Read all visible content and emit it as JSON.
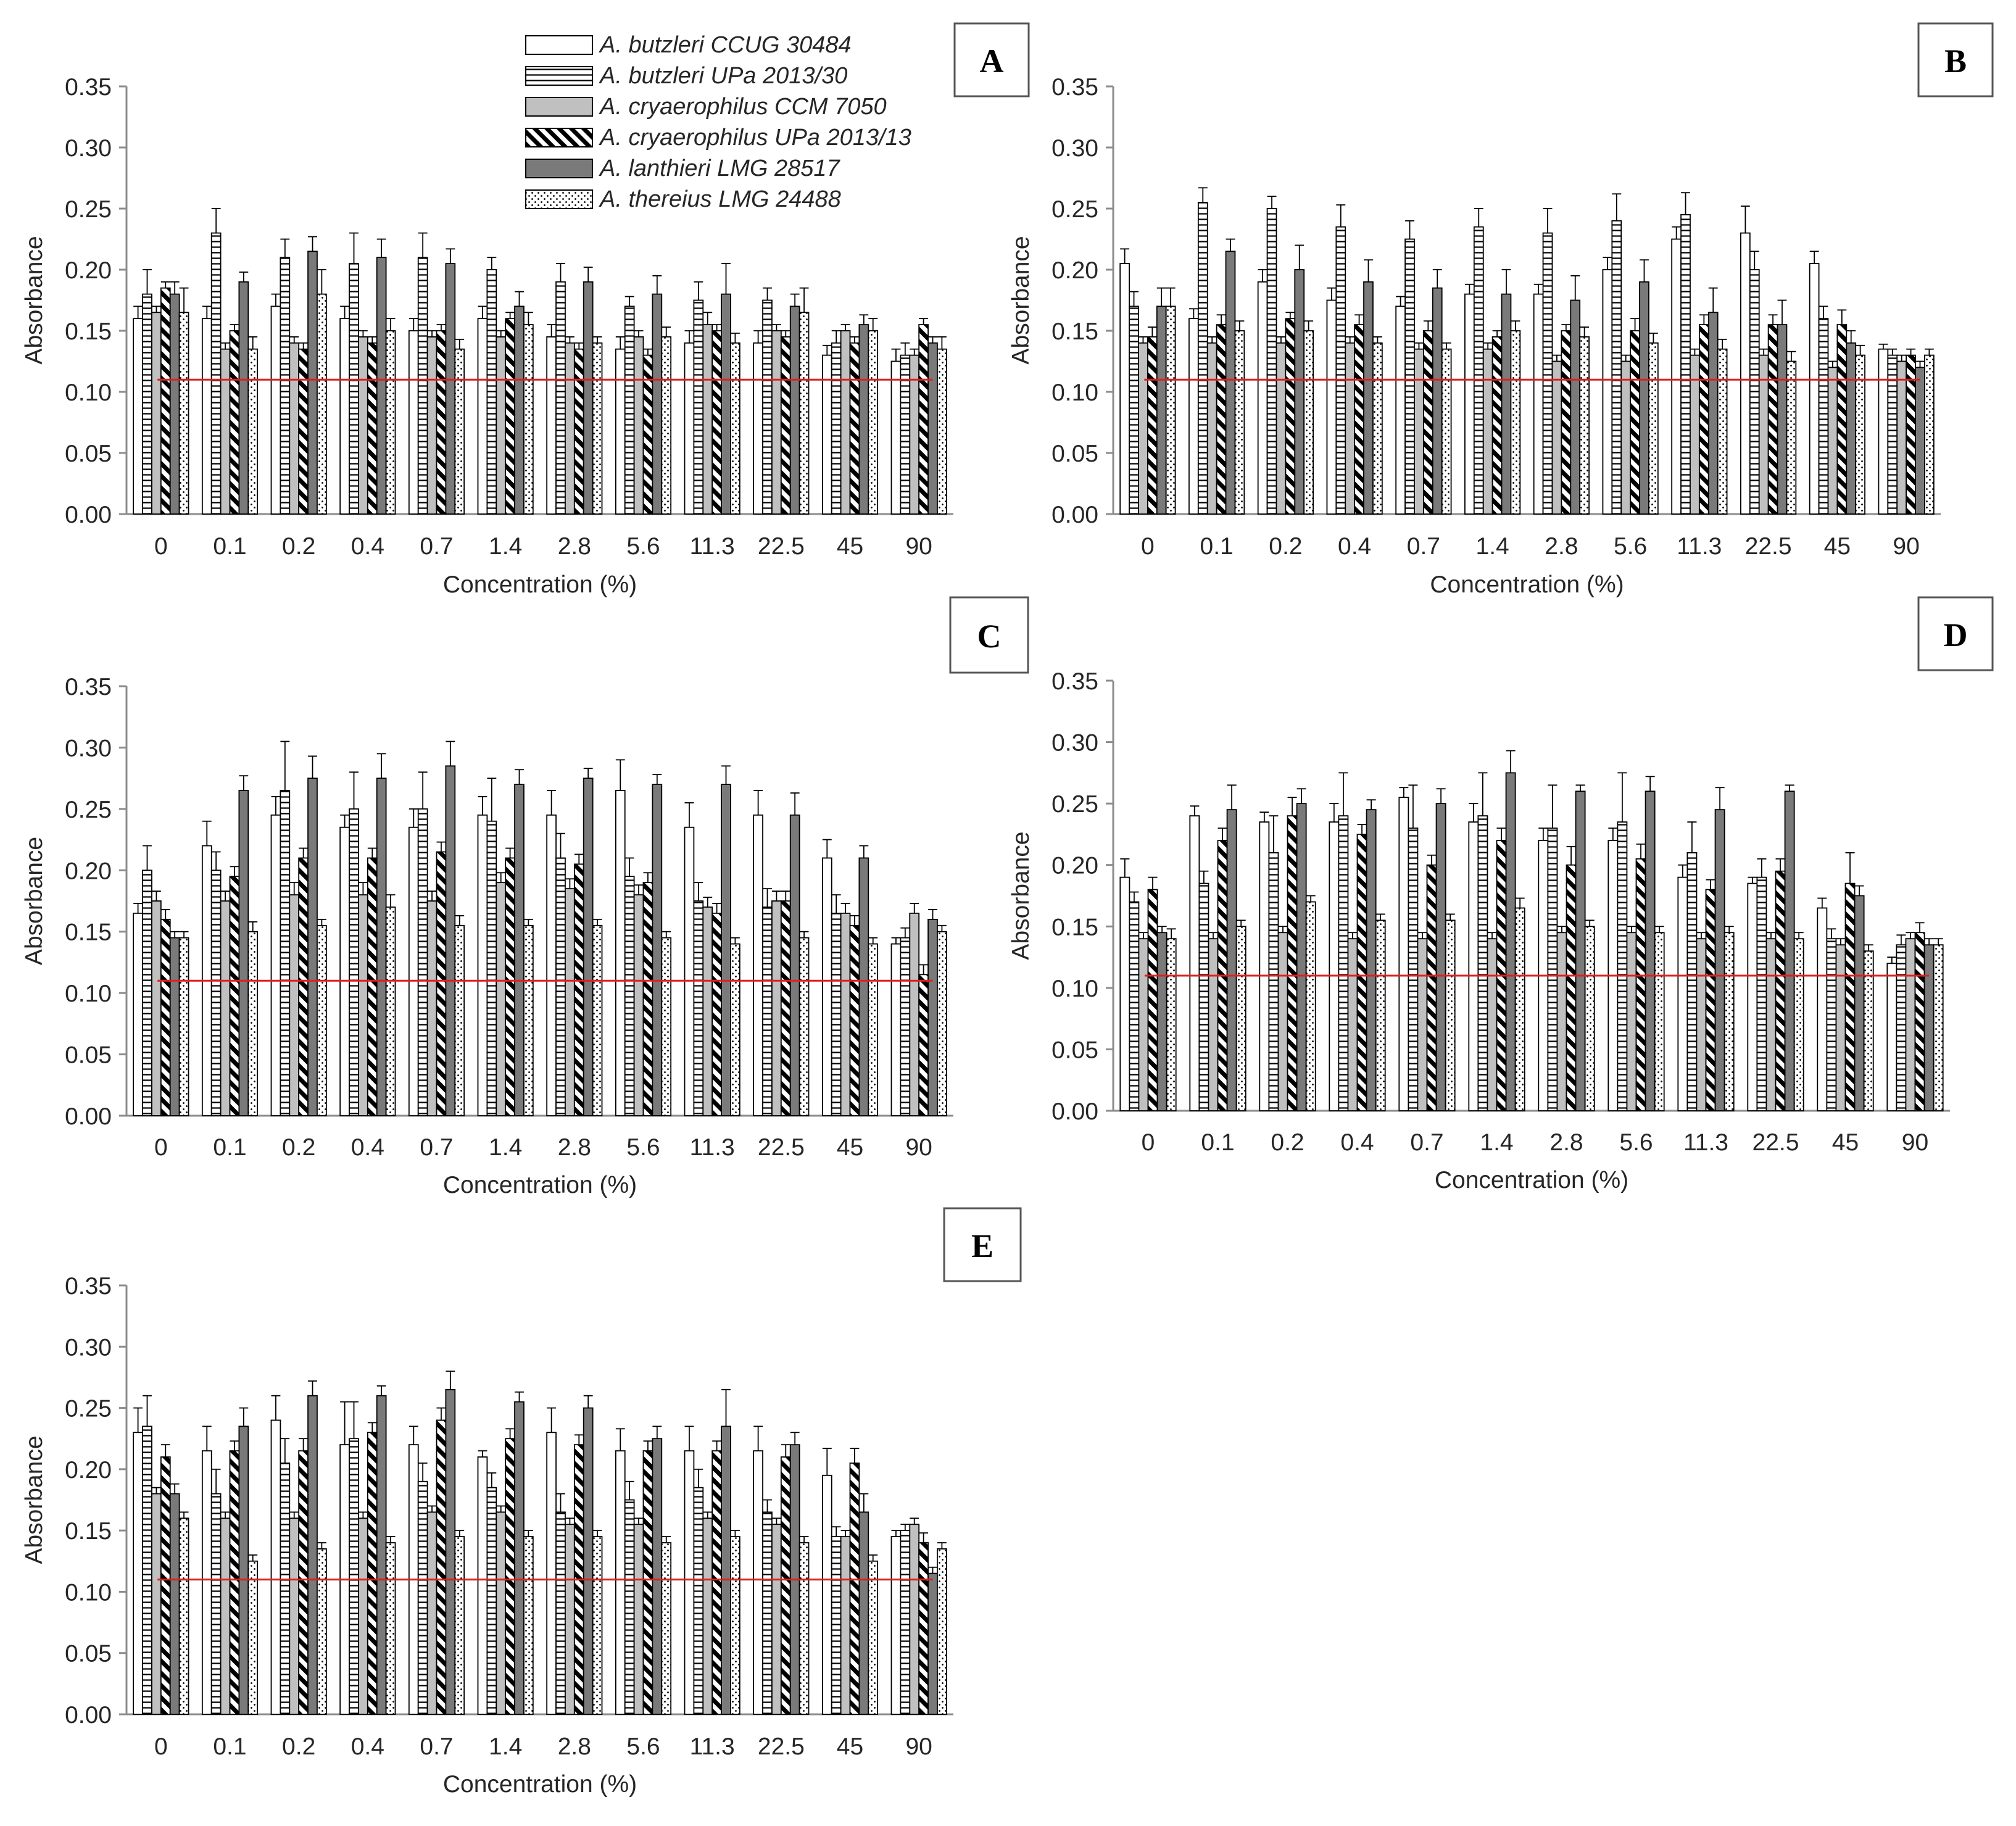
{
  "chart_data": {
    "type": "bar",
    "note": "Grouped bar charts with error bars; red horizontal line marks negative control absorbance.",
    "categories": [
      "0",
      "0.1",
      "0.2",
      "0.4",
      "0.7",
      "1.4",
      "2.8",
      "5.6",
      "11.3",
      "22.5",
      "45",
      "90"
    ],
    "xlabel": "Concentration (%)",
    "ylabel": "Absorbance",
    "ylim": [
      0,
      0.35
    ],
    "yticks": [
      "0.00",
      "0.05",
      "0.10",
      "0.15",
      "0.20",
      "0.25",
      "0.30",
      "0.35"
    ],
    "threshold": 0.11,
    "threshold_color": "#e02020",
    "legend": [
      {
        "name": "A. butzleri CCUG 30484",
        "pattern": "white"
      },
      {
        "name": "A. butzleri UPa 2013/30",
        "pattern": "hlines"
      },
      {
        "name": "A. cryaerophilus CCM 7050",
        "pattern": "lightgray"
      },
      {
        "name": "A. cryaerophilus UPa 2013/13",
        "pattern": "diag"
      },
      {
        "name": "A. lanthieri LMG 28517",
        "pattern": "darkgray"
      },
      {
        "name": "A. thereius LMG 24488",
        "pattern": "dots"
      }
    ],
    "panels": [
      {
        "label": "A",
        "series": [
          {
            "values": [
              0.16,
              0.16,
              0.17,
              0.16,
              0.15,
              0.16,
              0.145,
              0.135,
              0.14,
              0.14,
              0.13,
              0.125
            ],
            "errors": [
              0.01,
              0.01,
              0.01,
              0.01,
              0.01,
              0.01,
              0.01,
              0.01,
              0.01,
              0.01,
              0.008,
              0.01
            ]
          },
          {
            "values": [
              0.18,
              0.23,
              0.21,
              0.205,
              0.21,
              0.2,
              0.19,
              0.17,
              0.175,
              0.175,
              0.14,
              0.13
            ],
            "errors": [
              0.02,
              0.02,
              0.015,
              0.025,
              0.02,
              0.01,
              0.015,
              0.008,
              0.015,
              0.01,
              0.01,
              0.01
            ]
          },
          {
            "values": [
              0.165,
              0.135,
              0.14,
              0.145,
              0.145,
              0.145,
              0.14,
              0.145,
              0.155,
              0.15,
              0.15,
              0.13
            ],
            "errors": [
              0.005,
              0.005,
              0.005,
              0.005,
              0.005,
              0.005,
              0.005,
              0.005,
              0.01,
              0.005,
              0.005,
              0.005
            ]
          },
          {
            "values": [
              0.185,
              0.15,
              0.135,
              0.14,
              0.15,
              0.16,
              0.135,
              0.13,
              0.15,
              0.145,
              0.14,
              0.155
            ],
            "errors": [
              0.005,
              0.005,
              0.005,
              0.005,
              0.005,
              0.005,
              0.005,
              0.005,
              0.005,
              0.005,
              0.005,
              0.005
            ]
          },
          {
            "values": [
              0.18,
              0.19,
              0.215,
              0.21,
              0.205,
              0.17,
              0.19,
              0.18,
              0.18,
              0.17,
              0.155,
              0.14
            ],
            "errors": [
              0.01,
              0.008,
              0.012,
              0.015,
              0.012,
              0.012,
              0.012,
              0.015,
              0.025,
              0.01,
              0.008,
              0.005
            ]
          },
          {
            "values": [
              0.165,
              0.135,
              0.18,
              0.15,
              0.135,
              0.155,
              0.14,
              0.145,
              0.14,
              0.165,
              0.15,
              0.135
            ],
            "errors": [
              0.02,
              0.01,
              0.02,
              0.01,
              0.008,
              0.01,
              0.005,
              0.008,
              0.008,
              0.02,
              0.01,
              0.01
            ]
          }
        ]
      },
      {
        "label": "B",
        "series": [
          {
            "values": [
              0.205,
              0.16,
              0.19,
              0.175,
              0.17,
              0.18,
              0.18,
              0.2,
              0.225,
              0.23,
              0.205,
              0.135
            ],
            "errors": [
              0.012,
              0.008,
              0.01,
              0.01,
              0.008,
              0.008,
              0.008,
              0.01,
              0.01,
              0.022,
              0.01,
              0.004
            ]
          },
          {
            "values": [
              0.17,
              0.255,
              0.25,
              0.235,
              0.225,
              0.235,
              0.23,
              0.24,
              0.245,
              0.2,
              0.16,
              0.13
            ],
            "errors": [
              0.012,
              0.012,
              0.01,
              0.018,
              0.015,
              0.015,
              0.02,
              0.022,
              0.018,
              0.015,
              0.01,
              0.005
            ]
          },
          {
            "values": [
              0.14,
              0.14,
              0.14,
              0.14,
              0.135,
              0.135,
              0.125,
              0.125,
              0.13,
              0.13,
              0.12,
              0.125
            ],
            "errors": [
              0.005,
              0.005,
              0.005,
              0.005,
              0.005,
              0.005,
              0.005,
              0.005,
              0.005,
              0.005,
              0.005,
              0.005
            ]
          },
          {
            "values": [
              0.145,
              0.155,
              0.16,
              0.155,
              0.15,
              0.145,
              0.15,
              0.15,
              0.155,
              0.155,
              0.155,
              0.13
            ],
            "errors": [
              0.008,
              0.008,
              0.005,
              0.008,
              0.008,
              0.005,
              0.005,
              0.01,
              0.008,
              0.008,
              0.012,
              0.005
            ]
          },
          {
            "values": [
              0.17,
              0.215,
              0.2,
              0.19,
              0.185,
              0.18,
              0.175,
              0.19,
              0.165,
              0.155,
              0.14,
              0.12
            ],
            "errors": [
              0.015,
              0.01,
              0.02,
              0.018,
              0.015,
              0.02,
              0.02,
              0.018,
              0.02,
              0.02,
              0.01,
              0.005
            ]
          },
          {
            "values": [
              0.17,
              0.15,
              0.15,
              0.14,
              0.135,
              0.15,
              0.145,
              0.14,
              0.135,
              0.125,
              0.13,
              0.13
            ],
            "errors": [
              0.015,
              0.008,
              0.008,
              0.005,
              0.005,
              0.008,
              0.008,
              0.008,
              0.008,
              0.008,
              0.008,
              0.005
            ]
          }
        ]
      },
      {
        "label": "C",
        "series": [
          {
            "values": [
              0.165,
              0.22,
              0.245,
              0.235,
              0.235,
              0.245,
              0.245,
              0.265,
              0.235,
              0.245,
              0.21,
              0.14
            ],
            "errors": [
              0.008,
              0.02,
              0.015,
              0.01,
              0.015,
              0.015,
              0.02,
              0.025,
              0.02,
              0.02,
              0.015,
              0.005
            ]
          },
          {
            "values": [
              0.2,
              0.2,
              0.265,
              0.25,
              0.25,
              0.24,
              0.21,
              0.195,
              0.175,
              0.17,
              0.165,
              0.145
            ],
            "errors": [
              0.02,
              0.015,
              0.04,
              0.03,
              0.03,
              0.035,
              0.02,
              0.015,
              0.015,
              0.015,
              0.015,
              0.008
            ]
          },
          {
            "values": [
              0.175,
              0.175,
              0.18,
              0.18,
              0.175,
              0.19,
              0.185,
              0.18,
              0.17,
              0.175,
              0.165,
              0.165
            ],
            "errors": [
              0.008,
              0.008,
              0.01,
              0.01,
              0.008,
              0.008,
              0.008,
              0.008,
              0.008,
              0.008,
              0.008,
              0.008
            ]
          },
          {
            "values": [
              0.16,
              0.195,
              0.21,
              0.21,
              0.215,
              0.21,
              0.205,
              0.19,
              0.165,
              0.175,
              0.155,
              0.115
            ],
            "errors": [
              0.008,
              0.008,
              0.008,
              0.008,
              0.008,
              0.008,
              0.008,
              0.008,
              0.008,
              0.008,
              0.008,
              0.008
            ]
          },
          {
            "values": [
              0.145,
              0.265,
              0.275,
              0.275,
              0.285,
              0.27,
              0.275,
              0.27,
              0.27,
              0.245,
              0.21,
              0.16
            ],
            "errors": [
              0.005,
              0.012,
              0.018,
              0.02,
              0.02,
              0.012,
              0.008,
              0.008,
              0.015,
              0.018,
              0.01,
              0.008
            ]
          },
          {
            "values": [
              0.145,
              0.15,
              0.155,
              0.17,
              0.155,
              0.155,
              0.155,
              0.145,
              0.14,
              0.145,
              0.14,
              0.15
            ],
            "errors": [
              0.005,
              0.008,
              0.005,
              0.01,
              0.008,
              0.005,
              0.005,
              0.005,
              0.005,
              0.005,
              0.005,
              0.005
            ]
          }
        ]
      },
      {
        "label": "D",
        "series": [
          {
            "values": [
              0.19,
              0.24,
              0.235,
              0.235,
              0.255,
              0.235,
              0.22,
              0.22,
              0.19,
              0.185,
              0.165,
              0.12
            ],
            "errors": [
              0.015,
              0.008,
              0.008,
              0.015,
              0.008,
              0.015,
              0.01,
              0.01,
              0.01,
              0.005,
              0.008,
              0.005
            ]
          },
          {
            "values": [
              0.17,
              0.185,
              0.21,
              0.24,
              0.23,
              0.24,
              0.23,
              0.235,
              0.21,
              0.19,
              0.14,
              0.135
            ],
            "errors": [
              0.008,
              0.01,
              0.03,
              0.035,
              0.035,
              0.035,
              0.035,
              0.04,
              0.025,
              0.015,
              0.008,
              0.008
            ]
          },
          {
            "values": [
              0.14,
              0.14,
              0.145,
              0.14,
              0.14,
              0.14,
              0.145,
              0.145,
              0.14,
              0.14,
              0.135,
              0.14
            ],
            "errors": [
              0.005,
              0.005,
              0.005,
              0.005,
              0.005,
              0.005,
              0.005,
              0.005,
              0.005,
              0.005,
              0.005,
              0.005
            ]
          },
          {
            "values": [
              0.18,
              0.22,
              0.24,
              0.225,
              0.2,
              0.22,
              0.2,
              0.205,
              0.18,
              0.195,
              0.185,
              0.145
            ],
            "errors": [
              0.01,
              0.01,
              0.015,
              0.008,
              0.008,
              0.01,
              0.015,
              0.012,
              0.008,
              0.01,
              0.025,
              0.008
            ]
          },
          {
            "values": [
              0.145,
              0.245,
              0.25,
              0.245,
              0.25,
              0.275,
              0.26,
              0.26,
              0.245,
              0.26,
              0.175,
              0.135
            ],
            "errors": [
              0.005,
              0.02,
              0.012,
              0.008,
              0.012,
              0.018,
              0.005,
              0.012,
              0.018,
              0.005,
              0.008,
              0.005
            ]
          },
          {
            "values": [
              0.14,
              0.15,
              0.17,
              0.155,
              0.155,
              0.165,
              0.15,
              0.145,
              0.145,
              0.14,
              0.13,
              0.135
            ],
            "errors": [
              0.008,
              0.005,
              0.005,
              0.005,
              0.005,
              0.008,
              0.005,
              0.005,
              0.005,
              0.005,
              0.005,
              0.005
            ]
          }
        ]
      },
      {
        "label": "E",
        "series": [
          {
            "values": [
              0.23,
              0.215,
              0.24,
              0.22,
              0.22,
              0.21,
              0.23,
              0.215,
              0.215,
              0.215,
              0.195,
              0.145
            ],
            "errors": [
              0.02,
              0.02,
              0.02,
              0.035,
              0.015,
              0.005,
              0.02,
              0.018,
              0.02,
              0.02,
              0.022,
              0.005
            ]
          },
          {
            "values": [
              0.235,
              0.18,
              0.205,
              0.225,
              0.19,
              0.185,
              0.165,
              0.175,
              0.185,
              0.165,
              0.145,
              0.15
            ],
            "errors": [
              0.025,
              0.02,
              0.02,
              0.03,
              0.015,
              0.012,
              0.015,
              0.015,
              0.015,
              0.01,
              0.008,
              0.005
            ]
          },
          {
            "values": [
              0.18,
              0.16,
              0.16,
              0.16,
              0.165,
              0.165,
              0.155,
              0.155,
              0.16,
              0.155,
              0.145,
              0.155
            ],
            "errors": [
              0.005,
              0.005,
              0.005,
              0.005,
              0.005,
              0.005,
              0.005,
              0.005,
              0.005,
              0.005,
              0.005,
              0.005
            ]
          },
          {
            "values": [
              0.21,
              0.215,
              0.215,
              0.23,
              0.24,
              0.225,
              0.22,
              0.215,
              0.215,
              0.21,
              0.205,
              0.14
            ],
            "errors": [
              0.01,
              0.008,
              0.01,
              0.008,
              0.01,
              0.008,
              0.008,
              0.008,
              0.008,
              0.01,
              0.012,
              0.008
            ]
          },
          {
            "values": [
              0.18,
              0.235,
              0.26,
              0.26,
              0.265,
              0.255,
              0.25,
              0.225,
              0.235,
              0.22,
              0.165,
              0.115
            ],
            "errors": [
              0.008,
              0.015,
              0.012,
              0.008,
              0.015,
              0.008,
              0.01,
              0.01,
              0.03,
              0.01,
              0.015,
              0.005
            ]
          },
          {
            "values": [
              0.16,
              0.125,
              0.135,
              0.14,
              0.145,
              0.145,
              0.145,
              0.14,
              0.145,
              0.14,
              0.125,
              0.135
            ],
            "errors": [
              0.005,
              0.005,
              0.005,
              0.005,
              0.005,
              0.005,
              0.005,
              0.005,
              0.005,
              0.005,
              0.005,
              0.005
            ]
          }
        ]
      }
    ]
  }
}
